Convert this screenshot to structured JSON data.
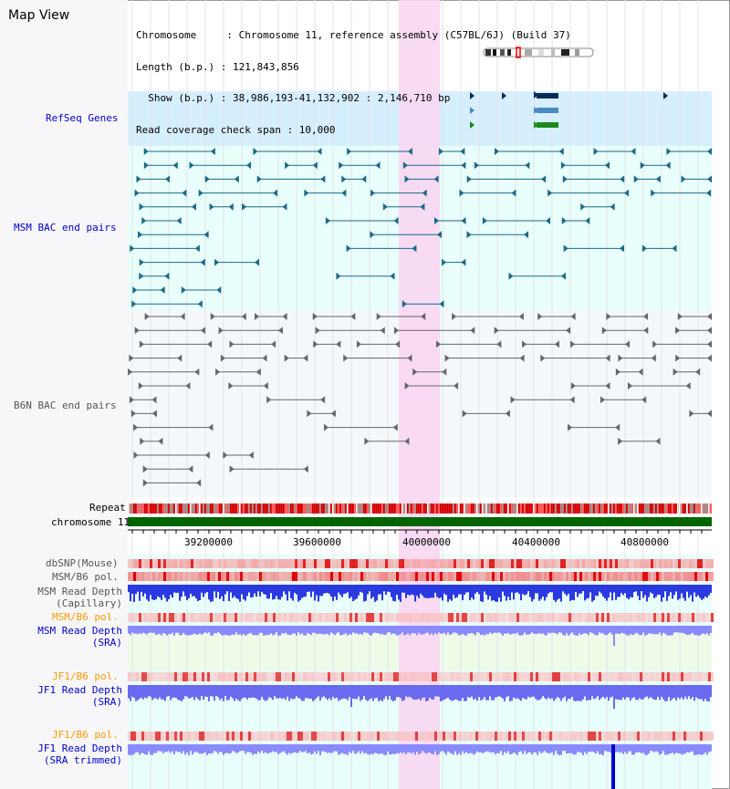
{
  "app": {
    "title": "Map View"
  },
  "header": {
    "lines": [
      "Chromosome     : Chromosome 11, reference assembly (C57BL/6J) (Build 37)",
      "Length (b.p.) : 121,843,856",
      "  Show (b.p.) : 38,986,193-41,132,902 : 2,146,710 bp",
      "Read coverage check span : 10,000"
    ]
  },
  "tracks": {
    "refseq": "RefSeq Genes",
    "msm_bac": "MSM BAC end pairs",
    "b6n_bac": "B6N BAC end pairs",
    "repeat": "Repeat",
    "chromosome": "chromosome 11",
    "dbsnp": "dbSNP(Mouse)",
    "msm_b6_pol": "MSM/B6 pol.",
    "msm_read_depth_cap": [
      "MSM Read Depth",
      "(Capillary)"
    ],
    "msm_b6_pol2": "MSM/B6 pol.",
    "msm_read_depth_sra": [
      "MSM Read Depth",
      "(SRA)"
    ],
    "jf1_b6_pol": "JF1/B6 pol.",
    "jf1_read_depth_sra": [
      "JF1 Read Depth",
      "(SRA)"
    ],
    "jf1_b6_pol2": "JF1/B6 pol.",
    "jf1_read_depth_trim": [
      "JF1 Read Depth",
      "(SRA trimmed)"
    ]
  },
  "axis": {
    "ticks": [
      "39200000",
      "39600000",
      "40000000",
      "40400000",
      "40800000"
    ]
  },
  "colors": {
    "highlight": "#f8d7f2",
    "refseq_bg": "#d6efff",
    "track_bg": "#e9fffb",
    "chromosome_bar": "#006400",
    "repeat_red": "#e00000",
    "read_depth": "#6666ff",
    "read_depth_dark": "#0000cc",
    "label_blue": "#0000cc",
    "label_orange": "#ff9900"
  }
}
